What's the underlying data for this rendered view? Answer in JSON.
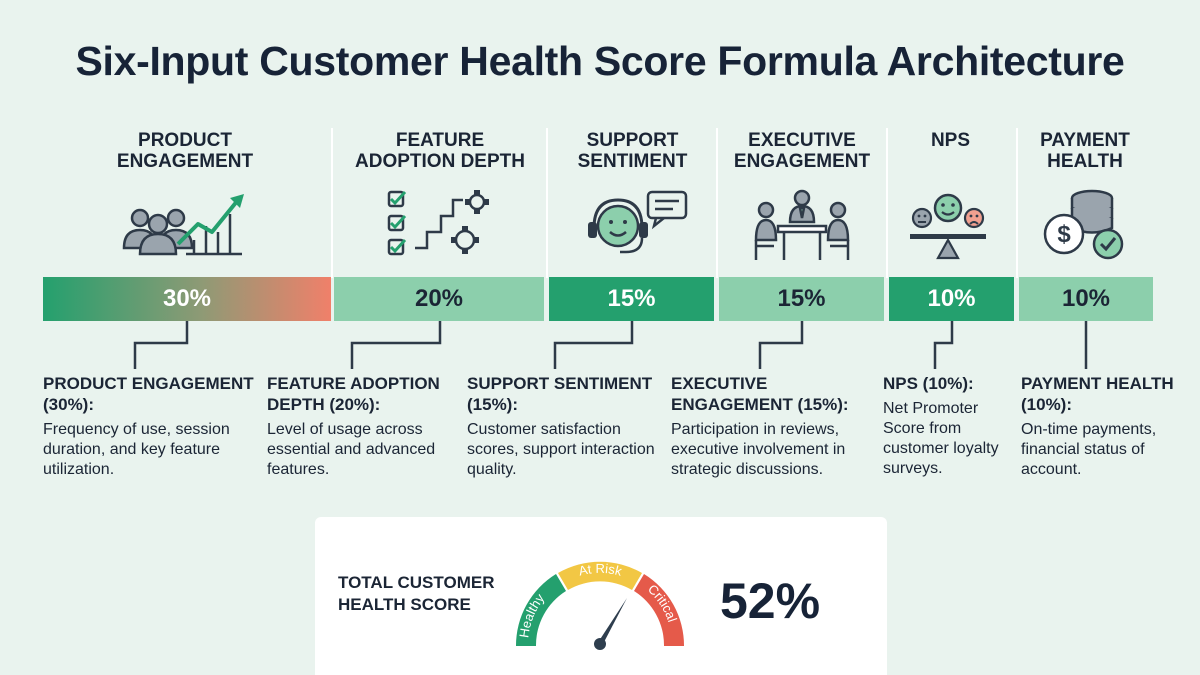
{
  "title": "Six-Input Customer Health Score Formula Architecture",
  "inputs": [
    {
      "heading": "PRODUCT ENGAGEMENT",
      "weight": "30%",
      "icon": "people-growth-chart-icon",
      "detail_title": "PRODUCT ENGAGEMENT (30%):",
      "detail_text": "Frequency of use, session duration, and key feature utilization."
    },
    {
      "heading": "FEATURE ADOPTION DEPTH",
      "weight": "20%",
      "icon": "checklist-gears-icon",
      "detail_title": "FEATURE ADOPTION DEPTH (20%):",
      "detail_text": "Level of usage across essential and advanced features."
    },
    {
      "heading": "SUPPORT SENTIMENT",
      "weight": "15%",
      "icon": "headset-agent-icon",
      "detail_title": "SUPPORT SENTIMENT (15%):",
      "detail_text": "Customer satisfaction scores, support interaction quality."
    },
    {
      "heading": "EXECUTIVE ENGAGEMENT",
      "weight": "15%",
      "icon": "meeting-table-icon",
      "detail_title": "EXECUTIVE ENGAGEMENT (15%):",
      "detail_text": "Participation in reviews, executive involvement in strategic discussions."
    },
    {
      "heading": "NPS",
      "weight": "10%",
      "icon": "sentiment-scale-icon",
      "detail_title": "NPS (10%):",
      "detail_text": "Net Promoter Score from customer loyalty surveys."
    },
    {
      "heading": "PAYMENT HEALTH",
      "weight": "10%",
      "icon": "coins-check-icon",
      "detail_title": "PAYMENT HEALTH (10%):",
      "detail_text": "On-time payments, financial status of account."
    }
  ],
  "score": {
    "label": "TOTAL CUSTOMER HEALTH SCORE",
    "value": "52%",
    "gauge_zones": [
      "Healthy",
      "At Risk",
      "Critical"
    ]
  },
  "colors": {
    "background": "#e9f3ee",
    "green_dark": "#24a06e",
    "green_light": "#8ccfac",
    "coral": "#f0806a",
    "amber": "#f2c744",
    "critical_red": "#e55a4a",
    "navy": "#172337",
    "needle": "#2e3e4e"
  }
}
